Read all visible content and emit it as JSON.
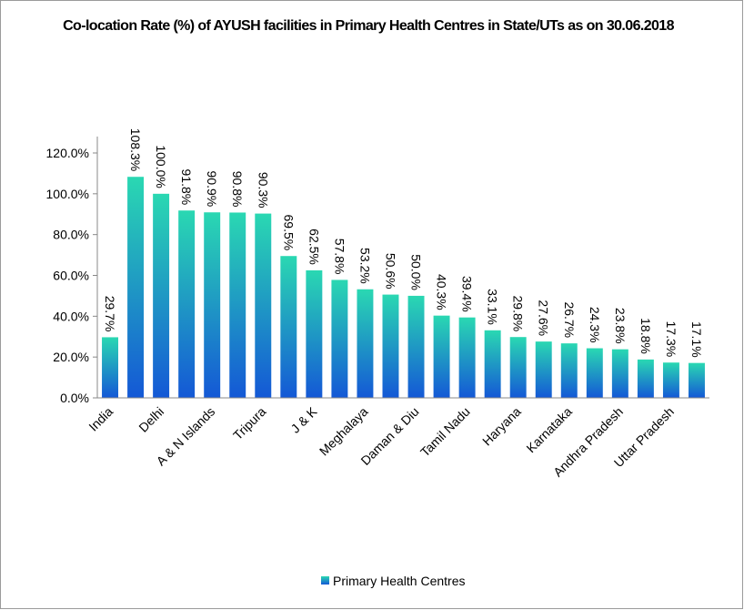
{
  "chart_data": {
    "type": "bar",
    "title": "Co-location Rate (%) of AYUSH facilities in Primary Health Centres in State/UTs as on 30.06.2018",
    "categories": [
      "India",
      null,
      "Delhi",
      null,
      "A & N Islands",
      null,
      "Tripura",
      null,
      "J & K",
      null,
      "Meghalaya",
      null,
      "Daman & Diu",
      null,
      "Tamil Nadu",
      null,
      "Haryana",
      null,
      "Karnataka",
      null,
      "Andhra Pradesh",
      null,
      "Uttar Pradesh",
      null
    ],
    "series": [
      {
        "name": "Primary Health Centres",
        "color": [
          "#2ad8b2",
          "#1458d6"
        ],
        "values": [
          29.7,
          108.3,
          100.0,
          91.8,
          90.9,
          90.8,
          90.3,
          69.5,
          62.5,
          57.8,
          53.2,
          50.6,
          50.0,
          40.3,
          39.4,
          33.1,
          29.8,
          27.6,
          26.7,
          24.3,
          23.8,
          18.8,
          17.3,
          17.1
        ],
        "value_labels": [
          "29.7%",
          "108.3%",
          "100.0%",
          "91.8%",
          "90.9%",
          "90.8%",
          "90.3%",
          "69.5%",
          "62.5%",
          "57.8%",
          "53.2%",
          "50.6%",
          "50.0%",
          "40.3%",
          "39.4%",
          "33.1%",
          "29.8%",
          "27.6%",
          "26.7%",
          "24.3%",
          "23.8%",
          "18.8%",
          "17.3%",
          "17.1%"
        ]
      }
    ],
    "ylim": [
      0,
      120
    ],
    "yticks": [
      {
        "value": 0,
        "label": "0.0%"
      },
      {
        "value": 20,
        "label": "20.0%"
      },
      {
        "value": 40,
        "label": "40.0%"
      },
      {
        "value": 60,
        "label": "60.0%"
      },
      {
        "value": 80,
        "label": "80.0%"
      },
      {
        "value": 100,
        "label": "100.0%"
      },
      {
        "value": 120,
        "label": "120.0%"
      }
    ],
    "legend": "bottom"
  }
}
